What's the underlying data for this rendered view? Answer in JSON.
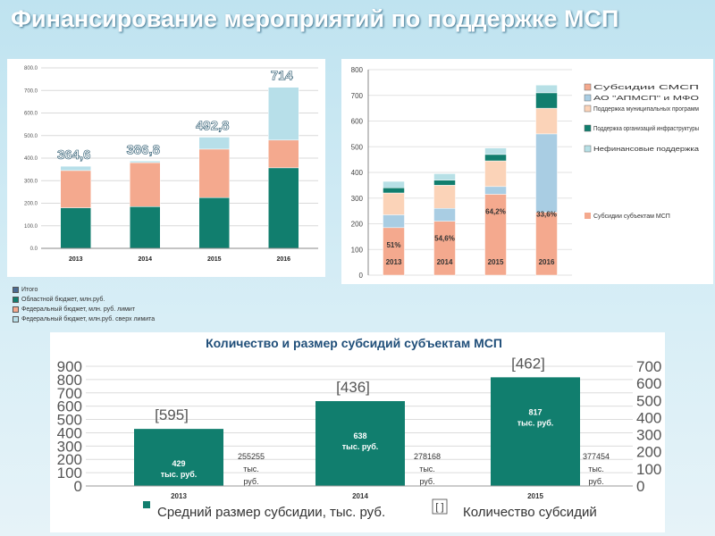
{
  "page": {
    "title": "Финансирование мероприятий по поддержке МСП"
  },
  "colors": {
    "regional": "#117e6e",
    "federal": "#f4a98e",
    "extra": "#b7dfe9",
    "smsp": "#f4a98e",
    "ao": "#a9cde3",
    "municipal": "#fbd3b8",
    "infra": "#117e6e",
    "nonfin": "#b7e0e6",
    "bar3": "#117e6e"
  },
  "chart_data": [
    {
      "type": "bar",
      "stacked": true,
      "categories": [
        "2013",
        "2014",
        "2015",
        "2016"
      ],
      "ylim": [
        0,
        800
      ],
      "yticks": [
        "0.0",
        "100.0",
        "200.0",
        "300.0",
        "400.0",
        "500.0",
        "600.0",
        "700.0",
        "800.0"
      ],
      "totals": [
        "364,6",
        "386,8",
        "492,8",
        "714"
      ],
      "series": [
        {
          "name": "Областной бюджет, млн.руб.",
          "values": [
            180,
            185,
            225,
            357
          ]
        },
        {
          "name": "Федеральный бюджет, млн. руб. лимит",
          "values": [
            165,
            195,
            215,
            123
          ]
        },
        {
          "name": "Федеральный бюджет, млн.руб. сверх лимита",
          "values": [
            19,
            7,
            53,
            234
          ]
        }
      ],
      "legend": [
        {
          "name": "Итого"
        },
        {
          "name": "Областной бюджет, млн.руб."
        },
        {
          "name": "Федеральный бюджет, млн. руб. лимит"
        },
        {
          "name": "Федеральный бюджет, млн.руб. сверх лимита"
        }
      ],
      "grid": true
    },
    {
      "type": "bar",
      "stacked": true,
      "categories": [
        "2013",
        "2014",
        "2015",
        "2016"
      ],
      "ylim": [
        0,
        800
      ],
      "yticks": [
        "0",
        "100",
        "200",
        "300",
        "400",
        "500",
        "600",
        "700",
        "800"
      ],
      "series": [
        {
          "name": "Субсидии СМСП",
          "values": [
            185,
            210,
            315,
            245
          ]
        },
        {
          "name": "АО \"АПМСП\" и МФО",
          "values": [
            50,
            50,
            30,
            305
          ]
        },
        {
          "name": "Поддержка муниципальных программ",
          "values": [
            85,
            90,
            100,
            100
          ]
        },
        {
          "name": "Поддержка организаций инфраструктуры",
          "values": [
            20,
            20,
            25,
            60
          ]
        },
        {
          "name": "Нефинансовые поддержка",
          "values": [
            25,
            25,
            25,
            30
          ]
        }
      ],
      "percent_labels": [
        "51%",
        "54,6%",
        "64,2%",
        "33,6%"
      ],
      "extra_legend": "Субсидии субъектам МСП",
      "grid": true
    },
    {
      "type": "bar",
      "title": "Количество и размер субсидий субъектам МСП",
      "categories": [
        "2013",
        "2014",
        "2015"
      ],
      "ylim_left": [
        0,
        900
      ],
      "ylim_right": [
        0,
        700
      ],
      "yticks_left": [
        "0",
        "100",
        "200",
        "300",
        "400",
        "500",
        "600",
        "700",
        "800",
        "900"
      ],
      "yticks_right": [
        "0",
        "100",
        "200",
        "300",
        "400",
        "500",
        "600",
        "700"
      ],
      "values": [
        429,
        638,
        817
      ],
      "bar_value_labels": [
        "429",
        "638",
        "817"
      ],
      "bar_unit_label": "тыс. руб.",
      "counts_labels": [
        "[595]",
        "[436]",
        "[462]"
      ],
      "amount_numbers": [
        "255255",
        "278168",
        "377454"
      ],
      "amount_unit_1": "тыс.",
      "amount_unit_2": "руб.",
      "legend": [
        {
          "name": "Средний размер субсидии, тыс. руб."
        },
        {
          "name": "Количество субсидий",
          "marker": "[ ]"
        }
      ]
    }
  ]
}
